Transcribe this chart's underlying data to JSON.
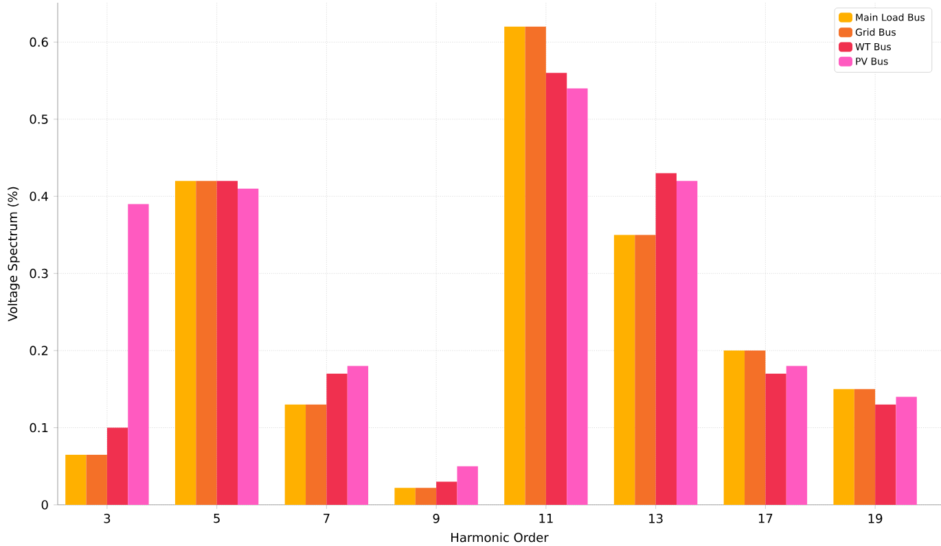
{
  "chart_data": {
    "type": "bar",
    "xlabel": "Harmonic Order",
    "ylabel": "Voltage Spectrum (%)",
    "categories": [
      "3",
      "5",
      "7",
      "9",
      "11",
      "13",
      "17",
      "19"
    ],
    "series": [
      {
        "name": "Main Load Bus",
        "color": "#ffb000",
        "values": [
          0.065,
          0.42,
          0.13,
          0.022,
          0.62,
          0.35,
          0.2,
          0.15
        ]
      },
      {
        "name": "Grid Bus",
        "color": "#f47028",
        "values": [
          0.065,
          0.42,
          0.13,
          0.022,
          0.62,
          0.35,
          0.2,
          0.15
        ]
      },
      {
        "name": "WT Bus",
        "color": "#f0304f",
        "values": [
          0.1,
          0.42,
          0.17,
          0.03,
          0.56,
          0.43,
          0.17,
          0.13
        ]
      },
      {
        "name": "PV Bus",
        "color": "#ff5ac0",
        "values": [
          0.39,
          0.41,
          0.18,
          0.05,
          0.54,
          0.42,
          0.18,
          0.14
        ]
      }
    ],
    "ylim": [
      0,
      0.651
    ],
    "yticks": [
      0,
      0.1,
      0.2,
      0.3,
      0.4,
      0.5,
      0.6
    ],
    "grid": true,
    "legend": "top right"
  }
}
